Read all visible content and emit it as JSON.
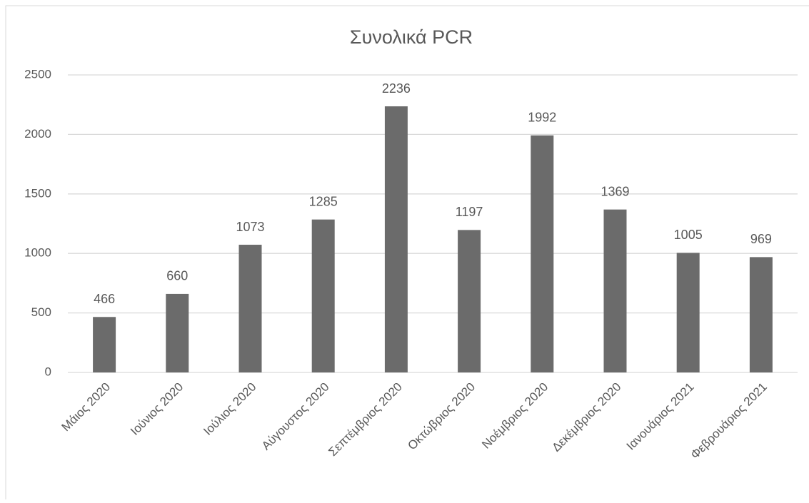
{
  "chart_data": {
    "type": "bar",
    "title": "Συνολικά PCR",
    "categories": [
      "Μάιος 2020",
      "Ιούνιος 2020",
      "Ιούλιος 2020",
      "Αύγουστος 2020",
      "Σεπτέμβριος 2020",
      "Οκτώβριος 2020",
      "Νοέμβριος 2020",
      "Δεκέμβριος 2020",
      "Ιανουάριος 2021",
      "Φεβρουάριος 2021"
    ],
    "values": [
      466,
      660,
      1073,
      1285,
      2236,
      1197,
      1992,
      1369,
      1005,
      969
    ],
    "color": "#6b6b6b",
    "ylim": [
      0,
      2500
    ],
    "yticks": [
      0,
      500,
      1000,
      1500,
      2000,
      2500
    ],
    "grid": true
  }
}
